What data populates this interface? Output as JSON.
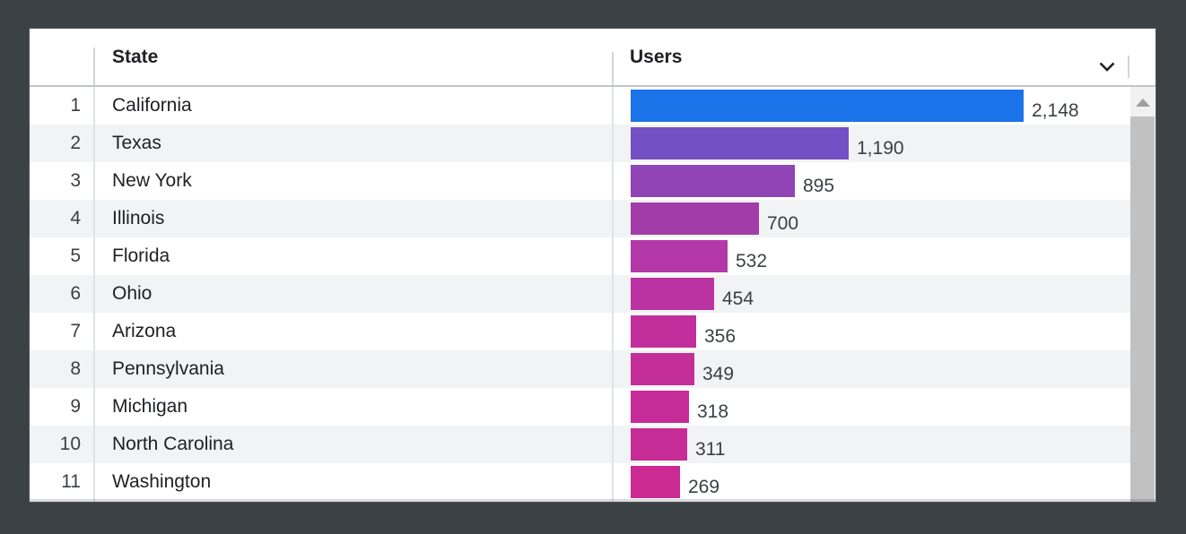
{
  "colors": {
    "background": "#3c4145",
    "accent_blue": "#1a73e8",
    "alt_row": "#f1f3f4"
  },
  "table": {
    "columns": [
      {
        "label": "State"
      },
      {
        "label": "Users"
      }
    ],
    "sort_icon": "chevron-down-icon",
    "max_value": 2148,
    "rows": [
      {
        "rank": "1",
        "state": "California",
        "users": "2,148",
        "value": 2148,
        "bar_color": "#1a73e8"
      },
      {
        "rank": "2",
        "state": "Texas",
        "users": "1,190",
        "value": 1190,
        "bar_color": "#7350c3"
      },
      {
        "rank": "3",
        "state": "New York",
        "users": "895",
        "value": 895,
        "bar_color": "#9044b6"
      },
      {
        "rank": "4",
        "state": "Illinois",
        "users": "700",
        "value": 700,
        "bar_color": "#a33ca9"
      },
      {
        "rank": "5",
        "state": "Florida",
        "users": "532",
        "value": 532,
        "bar_color": "#b238a8"
      },
      {
        "rank": "6",
        "state": "Ohio",
        "users": "454",
        "value": 454,
        "bar_color": "#bb33a2"
      },
      {
        "rank": "7",
        "state": "Arizona",
        "users": "356",
        "value": 356,
        "bar_color": "#c22e9b"
      },
      {
        "rank": "8",
        "state": "Pennsylvania",
        "users": "349",
        "value": 349,
        "bar_color": "#c32e99"
      },
      {
        "rank": "9",
        "state": "Michigan",
        "users": "318",
        "value": 318,
        "bar_color": "#c62c97"
      },
      {
        "rank": "10",
        "state": "North Carolina",
        "users": "311",
        "value": 311,
        "bar_color": "#c72b95"
      },
      {
        "rank": "11",
        "state": "Washington",
        "users": "269",
        "value": 269,
        "bar_color": "#ca2a92"
      }
    ]
  },
  "chart_data": {
    "type": "bar",
    "orientation": "horizontal",
    "categories": [
      "California",
      "Texas",
      "New York",
      "Illinois",
      "Florida",
      "Ohio",
      "Arizona",
      "Pennsylvania",
      "Michigan",
      "North Carolina",
      "Washington"
    ],
    "values": [
      2148,
      1190,
      895,
      700,
      532,
      454,
      356,
      349,
      318,
      311,
      269
    ],
    "title": "",
    "xlabel": "Users",
    "ylabel": "State",
    "xlim": [
      0,
      2148
    ],
    "grid": false,
    "legend": false,
    "bar_colors": [
      "#1a73e8",
      "#7350c3",
      "#9044b6",
      "#a33ca9",
      "#b238a8",
      "#bb33a2",
      "#c22e9b",
      "#c32e99",
      "#c62c97",
      "#c72b95",
      "#ca2a92"
    ]
  }
}
